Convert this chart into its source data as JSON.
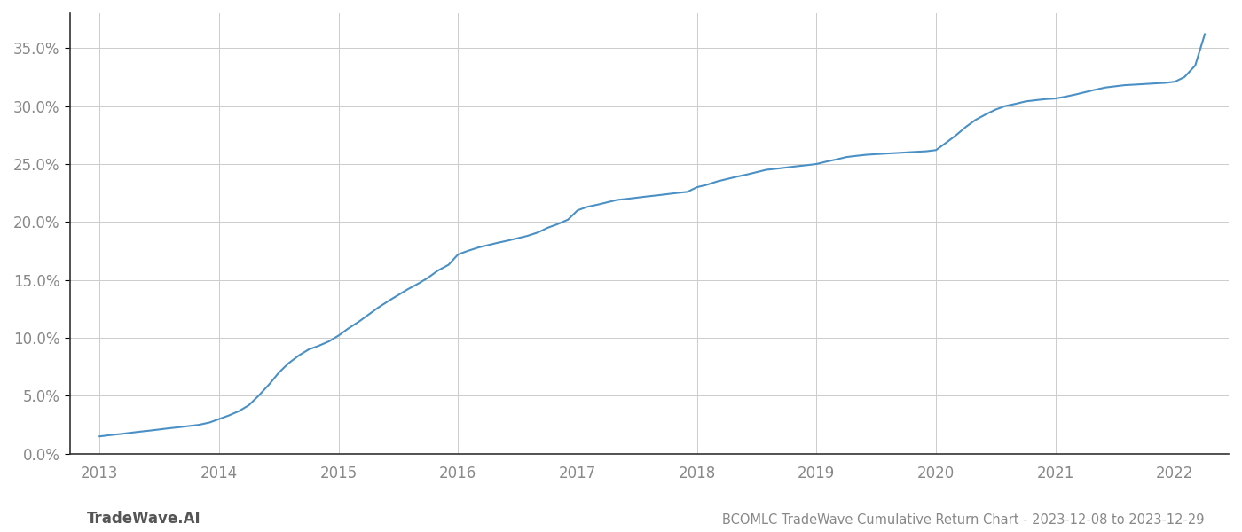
{
  "title": "BCOMLC TradeWave Cumulative Return Chart - 2023-12-08 to 2023-12-29",
  "watermark": "TradeWave.AI",
  "line_color": "#4a90c4",
  "background_color": "#ffffff",
  "grid_color": "#cccccc",
  "x_years": [
    2013,
    2014,
    2015,
    2016,
    2017,
    2018,
    2019,
    2020,
    2021,
    2022
  ],
  "x_data": [
    2013.0,
    2013.08,
    2013.17,
    2013.25,
    2013.33,
    2013.42,
    2013.5,
    2013.58,
    2013.67,
    2013.75,
    2013.83,
    2013.92,
    2014.0,
    2014.08,
    2014.17,
    2014.25,
    2014.33,
    2014.42,
    2014.5,
    2014.58,
    2014.67,
    2014.75,
    2014.83,
    2014.92,
    2015.0,
    2015.08,
    2015.17,
    2015.25,
    2015.33,
    2015.42,
    2015.5,
    2015.58,
    2015.67,
    2015.75,
    2015.83,
    2015.92,
    2016.0,
    2016.08,
    2016.17,
    2016.25,
    2016.33,
    2016.42,
    2016.5,
    2016.58,
    2016.67,
    2016.75,
    2016.83,
    2016.92,
    2017.0,
    2017.08,
    2017.17,
    2017.25,
    2017.33,
    2017.42,
    2017.5,
    2017.58,
    2017.67,
    2017.75,
    2017.83,
    2017.92,
    2018.0,
    2018.08,
    2018.17,
    2018.25,
    2018.33,
    2018.42,
    2018.5,
    2018.58,
    2018.67,
    2018.75,
    2018.83,
    2018.92,
    2019.0,
    2019.08,
    2019.17,
    2019.25,
    2019.33,
    2019.42,
    2019.5,
    2019.58,
    2019.67,
    2019.75,
    2019.83,
    2019.92,
    2020.0,
    2020.08,
    2020.17,
    2020.25,
    2020.33,
    2020.42,
    2020.5,
    2020.58,
    2020.67,
    2020.75,
    2020.83,
    2020.92,
    2021.0,
    2021.08,
    2021.17,
    2021.25,
    2021.33,
    2021.42,
    2021.5,
    2021.58,
    2021.67,
    2021.75,
    2021.83,
    2021.92,
    2022.0,
    2022.08,
    2022.17,
    2022.25
  ],
  "y_data": [
    1.5,
    1.6,
    1.7,
    1.8,
    1.9,
    2.0,
    2.1,
    2.2,
    2.3,
    2.4,
    2.5,
    2.7,
    3.0,
    3.3,
    3.7,
    4.2,
    5.0,
    6.0,
    7.0,
    7.8,
    8.5,
    9.0,
    9.3,
    9.7,
    10.2,
    10.8,
    11.4,
    12.0,
    12.6,
    13.2,
    13.7,
    14.2,
    14.7,
    15.2,
    15.8,
    16.3,
    17.2,
    17.5,
    17.8,
    18.0,
    18.2,
    18.4,
    18.6,
    18.8,
    19.1,
    19.5,
    19.8,
    20.2,
    21.0,
    21.3,
    21.5,
    21.7,
    21.9,
    22.0,
    22.1,
    22.2,
    22.3,
    22.4,
    22.5,
    22.6,
    23.0,
    23.2,
    23.5,
    23.7,
    23.9,
    24.1,
    24.3,
    24.5,
    24.6,
    24.7,
    24.8,
    24.9,
    25.0,
    25.2,
    25.4,
    25.6,
    25.7,
    25.8,
    25.85,
    25.9,
    25.95,
    26.0,
    26.05,
    26.1,
    26.2,
    26.8,
    27.5,
    28.2,
    28.8,
    29.3,
    29.7,
    30.0,
    30.2,
    30.4,
    30.5,
    30.6,
    30.65,
    30.8,
    31.0,
    31.2,
    31.4,
    31.6,
    31.7,
    31.8,
    31.85,
    31.9,
    31.95,
    32.0,
    32.1,
    32.5,
    33.5,
    36.2
  ],
  "ylim": [
    0.0,
    38.0
  ],
  "yticks": [
    0.0,
    5.0,
    10.0,
    15.0,
    20.0,
    25.0,
    30.0,
    35.0
  ],
  "xlim": [
    2012.75,
    2022.45
  ],
  "title_fontsize": 10.5,
  "tick_fontsize": 12,
  "watermark_fontsize": 12,
  "line_width": 1.5
}
